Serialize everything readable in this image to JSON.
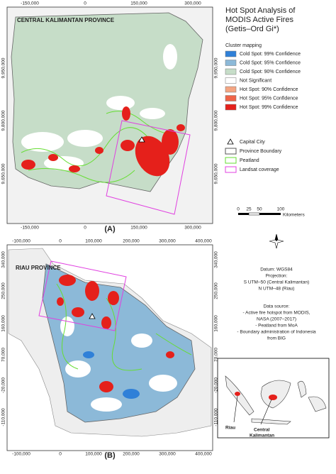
{
  "panel_a": {
    "title": "CENTRAL KALIMANTAN PROVINCE",
    "label": "(A)",
    "x_ticks": [
      "-150,000",
      "0",
      "150,000",
      "300,000"
    ],
    "y_ticks": [
      "9,950,000",
      "9,800,000",
      "9,650,000"
    ]
  },
  "panel_b": {
    "title": "RIAU PROVINCE",
    "label": "(B)",
    "x_ticks": [
      "-100,000",
      "0",
      "100,000",
      "200,000",
      "300,000",
      "400,000"
    ],
    "y_ticks": [
      "340,000",
      "250,000",
      "160,000",
      "70,000",
      "-20,000",
      "-110,000"
    ]
  },
  "legend": {
    "title": [
      "Hot Spot Analysis of",
      "MODIS Active Fires",
      "(Getis–Ord Gi*)"
    ],
    "subtitle": "Cluster mapping",
    "items": [
      {
        "label": "Cold Spot: 99% Confidence",
        "color": "#2f80d8"
      },
      {
        "label": "Cold Spot: 95% Confidence",
        "color": "#8cb9d8"
      },
      {
        "label": "Cold Spot: 90% Confidence",
        "color": "#c6ddc8"
      },
      {
        "label": "Not Significant",
        "color": "#ffffff"
      },
      {
        "label": "Hot Spot: 90% Confidence",
        "color": "#f4a582"
      },
      {
        "label": "Hot Spot: 95% Confidence",
        "color": "#ef6448"
      },
      {
        "label": "Hot Spot: 99% Confidence",
        "color": "#e5201b"
      }
    ],
    "symbols": [
      {
        "label": "Capital City"
      },
      {
        "label": "Province Boundary",
        "color": "#555555"
      },
      {
        "label": "Peatland",
        "color": "#66dd33"
      },
      {
        "label": "Landsat coverage",
        "color": "#e040e0"
      }
    ]
  },
  "scale_bar": {
    "ticks": [
      "0",
      "25",
      "50",
      "100"
    ],
    "unit": "Kilometers"
  },
  "datum": [
    "Datum: WGS84",
    "Projection:",
    "S UTM–50 (Central Kalimantan)",
    "N UTM–48 (Riau)"
  ],
  "data_source": [
    "Data source:",
    "- Active fire hotspot from MODIS,",
    "NASA (2007–2017)",
    "- Peatland from MoA",
    "- Boundary administration of Indonesia",
    "from BIG"
  ],
  "inset": {
    "riau": "Riau",
    "central_kalimantan": [
      "Central",
      "Kalimantan"
    ]
  }
}
